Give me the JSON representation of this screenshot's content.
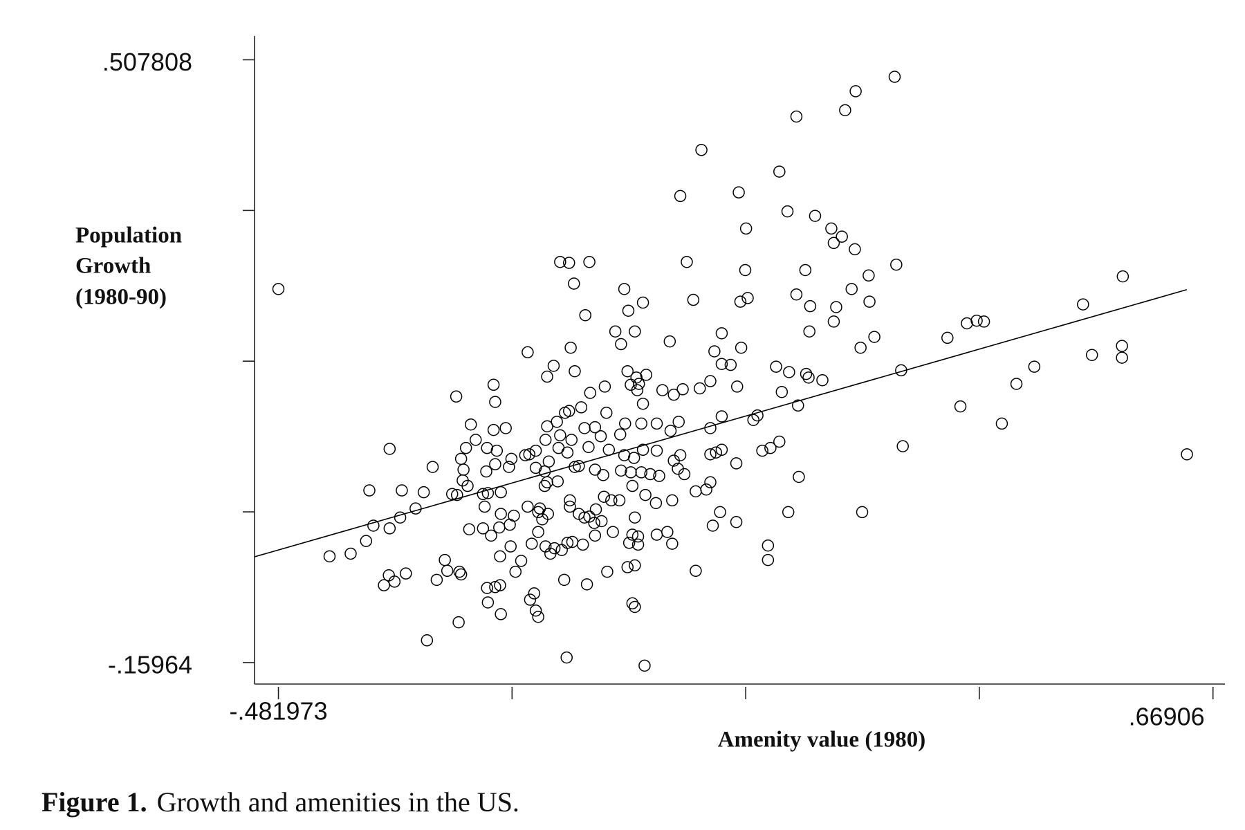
{
  "chart_data": {
    "type": "scatter",
    "xlabel": "Amenity value (1980)",
    "ylabel": [
      "Population",
      "Growth",
      "(1980-90)"
    ],
    "caption": {
      "label": "Figure 1.",
      "text": "Growth and amenities in the US."
    },
    "xlim": [
      -0.5114,
      0.6838
    ],
    "ylim": [
      -0.1834,
      0.5342
    ],
    "xticks": [
      {
        "value": -0.481973,
        "label": "-.481973"
      },
      {
        "value": -0.194215,
        "label": null
      },
      {
        "value": 0.093544,
        "label": null
      },
      {
        "value": 0.381302,
        "label": null
      },
      {
        "value": 0.66906,
        "label": ".66906"
      }
    ],
    "yticks": [
      {
        "value": -0.15964,
        "label": "-.15964"
      },
      {
        "value": 0.007222,
        "label": null
      },
      {
        "value": 0.174084,
        "label": null
      },
      {
        "value": 0.340946,
        "label": null
      },
      {
        "value": 0.507808,
        "label": ".507808"
      }
    ],
    "color": "#000000",
    "marker": "open-circle",
    "grid": false,
    "fit": {
      "x": [
        -0.5114,
        0.6368
      ],
      "y": [
        -0.0425,
        0.2533
      ]
    },
    "x": [
      -0.482,
      0.277,
      0.229,
      0.216,
      0.156,
      0.039,
      0.135,
      0.013,
      0.085,
      0.094,
      0.145,
      0.179,
      0.199,
      0.212,
      0.202,
      0.228,
      -0.135,
      -0.124,
      -0.099,
      0.021,
      0.093,
      0.167,
      0.279,
      0.558,
      -0.118,
      -0.056,
      0.245,
      0.224,
      -0.033,
      0.029,
      0.087,
      0.096,
      0.156,
      0.173,
      0.205,
      0.246,
      0.509,
      -0.104,
      -0.051,
      0.366,
      0.378,
      0.387,
      -0.067,
      -0.043,
      0.064,
      0.202,
      0.172,
      0.252,
      0.342,
      0.235,
      -0.06,
      0,
      -0.175,
      -0.122,
      0.055,
      0.088,
      0.52,
      0.557,
      0.557,
      -0.143,
      -0.117,
      0.064,
      0.075,
      0.131,
      0.147,
      0.168,
      0.171,
      0.188,
      0.285,
      0.449,
      -0.151,
      -0.052,
      -0.041,
      -0.029,
      -0.048,
      -0.038,
      -0.04,
      -0.217,
      -0.263,
      -0.215,
      -0.098,
      -0.08,
      -0.009,
      0.005,
      0.016,
      0.037,
      0.05,
      0.083,
      0.138,
      0.427,
      0.358,
      0.158,
      -0.033,
      -0.129,
      -0.124,
      -0.109,
      -0.078,
      -0.139,
      -0.151,
      -0.202,
      -0.217,
      -0.245,
      -0.239,
      -0.251,
      -0.257,
      -0.225,
      -0.213,
      -0.173,
      -0.165,
      -0.153,
      -0.135,
      -0.121,
      -0.105,
      -0.092,
      -0.085,
      -0.061,
      -0.055,
      -0.035,
      -0.016,
      0.011,
      0.001,
      0.05,
      0.064,
      0.103,
      0.108,
      0.409,
      0.287,
      0.637,
      0.135,
      0.114,
      0.124,
      0.057,
      0.05,
      0.064,
      0.013,
      0.005,
      -0.016,
      -0.033,
      -0.044,
      -0.056,
      -0.075,
      -0.1,
      -0.126,
      -0.137,
      -0.149,
      -0.154,
      -0.165,
      -0.178,
      -0.195,
      -0.198,
      -0.215,
      -0.226,
      -0.254,
      -0.292,
      -0.345,
      -0.255,
      -0.249,
      -0.268,
      -0.262,
      -0.23,
      -0.224,
      -0.208,
      -0.151,
      -0.154,
      -0.138,
      -0.117,
      -0.112,
      -0.092,
      -0.082,
      -0.06,
      -0.048,
      -0.035,
      -0.024,
      -0.013,
      0.01,
      0.018,
      0.082,
      0.159,
      -0.37,
      -0.33,
      -0.303,
      -0.313,
      -0.332,
      -0.365,
      -0.345,
      -0.374,
      -0.393,
      -0.419,
      -0.346,
      -0.352,
      -0.339,
      -0.325,
      -0.287,
      -0.277,
      -0.274,
      -0.259,
      -0.257,
      -0.299,
      -0.26,
      -0.225,
      -0.224,
      -0.215,
      -0.209,
      -0.208,
      -0.19,
      -0.183,
      -0.172,
      -0.167,
      -0.165,
      -0.162,
      -0.127,
      -0.031,
      -0.046,
      -0.043,
      -0.052,
      -0.043,
      0.032,
      0.121,
      0.121,
      0.146,
      0.237,
      0.082,
      0.062,
      0.053,
      0.003,
      -0.003,
      -0.016,
      -0.017,
      -0.03,
      -0.046,
      -0.043,
      -0.046,
      -0.039,
      -0.039,
      -0.05,
      -0.07,
      -0.072,
      -0.062,
      -0.081,
      -0.084,
      -0.091,
      -0.093,
      -0.099,
      -0.105,
      -0.102,
      -0.077,
      -0.092,
      -0.107,
      -0.12,
      -0.126,
      -0.133,
      -0.13,
      -0.142,
      -0.153,
      -0.147,
      -0.17,
      -0.162,
      -0.157,
      -0.162,
      -0.16,
      -0.15,
      -0.175,
      -0.192,
      -0.197,
      -0.208,
      -0.21,
      -0.228,
      -0.23,
      -0.22,
      -0.209,
      -0.196,
      -0.247,
      -0.123,
      -0.123,
      -0.112,
      0.05,
      0.045,
      0.032,
      0.003
    ],
    "values": [
      0.254,
      0.489,
      0.473,
      0.452,
      0.445,
      0.408,
      0.384,
      0.357,
      0.361,
      0.321,
      0.34,
      0.335,
      0.321,
      0.312,
      0.305,
      0.298,
      0.284,
      0.283,
      0.284,
      0.284,
      0.275,
      0.275,
      0.281,
      0.268,
      0.26,
      0.254,
      0.269,
      0.254,
      0.239,
      0.242,
      0.24,
      0.244,
      0.248,
      0.235,
      0.234,
      0.24,
      0.237,
      0.225,
      0.23,
      0.216,
      0.219,
      0.218,
      0.207,
      0.207,
      0.205,
      0.218,
      0.207,
      0.201,
      0.2,
      0.189,
      0.193,
      0.196,
      0.184,
      0.189,
      0.185,
      0.189,
      0.181,
      0.191,
      0.178,
      0.169,
      0.163,
      0.171,
      0.17,
      0.168,
      0.162,
      0.16,
      0.156,
      0.153,
      0.164,
      0.168,
      0.157,
      0.163,
      0.156,
      0.159,
      0.148,
      0.149,
      0.142,
      0.148,
      0.135,
      0.129,
      0.139,
      0.146,
      0.142,
      0.137,
      0.143,
      0.144,
      0.152,
      0.146,
      0.14,
      0.149,
      0.124,
      0.125,
      0.127,
      0.117,
      0.119,
      0.123,
      0.117,
      0.107,
      0.102,
      0.1,
      0.098,
      0.104,
      0.087,
      0.078,
      0.066,
      0.078,
      0.075,
      0.071,
      0.075,
      0.087,
      0.092,
      0.087,
      0.1,
      0.101,
      0.091,
      0.093,
      0.105,
      0.105,
      0.105,
      0.107,
      0.097,
      0.1,
      0.113,
      0.109,
      0.114,
      0.105,
      0.08,
      0.071,
      0.085,
      0.075,
      0.078,
      0.073,
      0.071,
      0.076,
      0.07,
      0.064,
      0.075,
      0.076,
      0.067,
      0.07,
      0.076,
      0.079,
      0.073,
      0.078,
      0.063,
      0.052,
      0.056,
      0.07,
      0.066,
      0.057,
      0.06,
      0.052,
      0.054,
      0.057,
      0.077,
      0.042,
      0.036,
      0.027,
      0.026,
      0.027,
      0.028,
      0.029,
      0.04,
      0.036,
      0.041,
      0.057,
      0.058,
      0.054,
      0.048,
      0.053,
      0.051,
      0.051,
      0.049,
      0.047,
      0.055,
      0.049,
      0.061,
      0.046,
      0.031,
      0.031,
      0.029,
      0.011,
      0.001,
      -0.008,
      -0.011,
      -0.025,
      -0.039,
      -0.042,
      -0.063,
      -0.074,
      -0.07,
      -0.061,
      -0.068,
      -0.046,
      -0.058,
      -0.059,
      -0.062,
      -0.135,
      -0.115,
      -0.077,
      -0.093,
      -0.076,
      -0.074,
      -0.106,
      -0.059,
      -0.047,
      -0.09,
      -0.083,
      -0.102,
      -0.109,
      -0.154,
      -0.163,
      -0.094,
      -0.098,
      -0.054,
      -0.052,
      -0.058,
      -0.03,
      -0.046,
      0.007,
      0.007,
      -0.004,
      0.007,
      -0.008,
      -0.028,
      -0.015,
      -0.018,
      0.017,
      0.026,
      0.036,
      0.001,
      -0.018,
      -0.02,
      -0.029,
      -0.027,
      -0.015,
      0.02,
      0.02,
      0.024,
      -0.003,
      0.01,
      -0.005,
      0.002,
      0.001,
      -0.073,
      -0.059,
      -0.019,
      -0.029,
      -0.026,
      -0.027,
      -0.035,
      -0.068,
      -0.033,
      -0.031,
      -0.039,
      -0.028,
      -0.015,
      -0.001,
      0.007,
      0.011,
      0.005,
      0.013,
      0.003,
      -0.007,
      0.005,
      -0.01,
      0.013,
      -0.011,
      -0.019,
      -0.042,
      -0.031,
      -0.012,
      0.013,
      0.02,
      0.005,
      0.04,
      0.032,
      0.03,
      0.02
    ]
  }
}
